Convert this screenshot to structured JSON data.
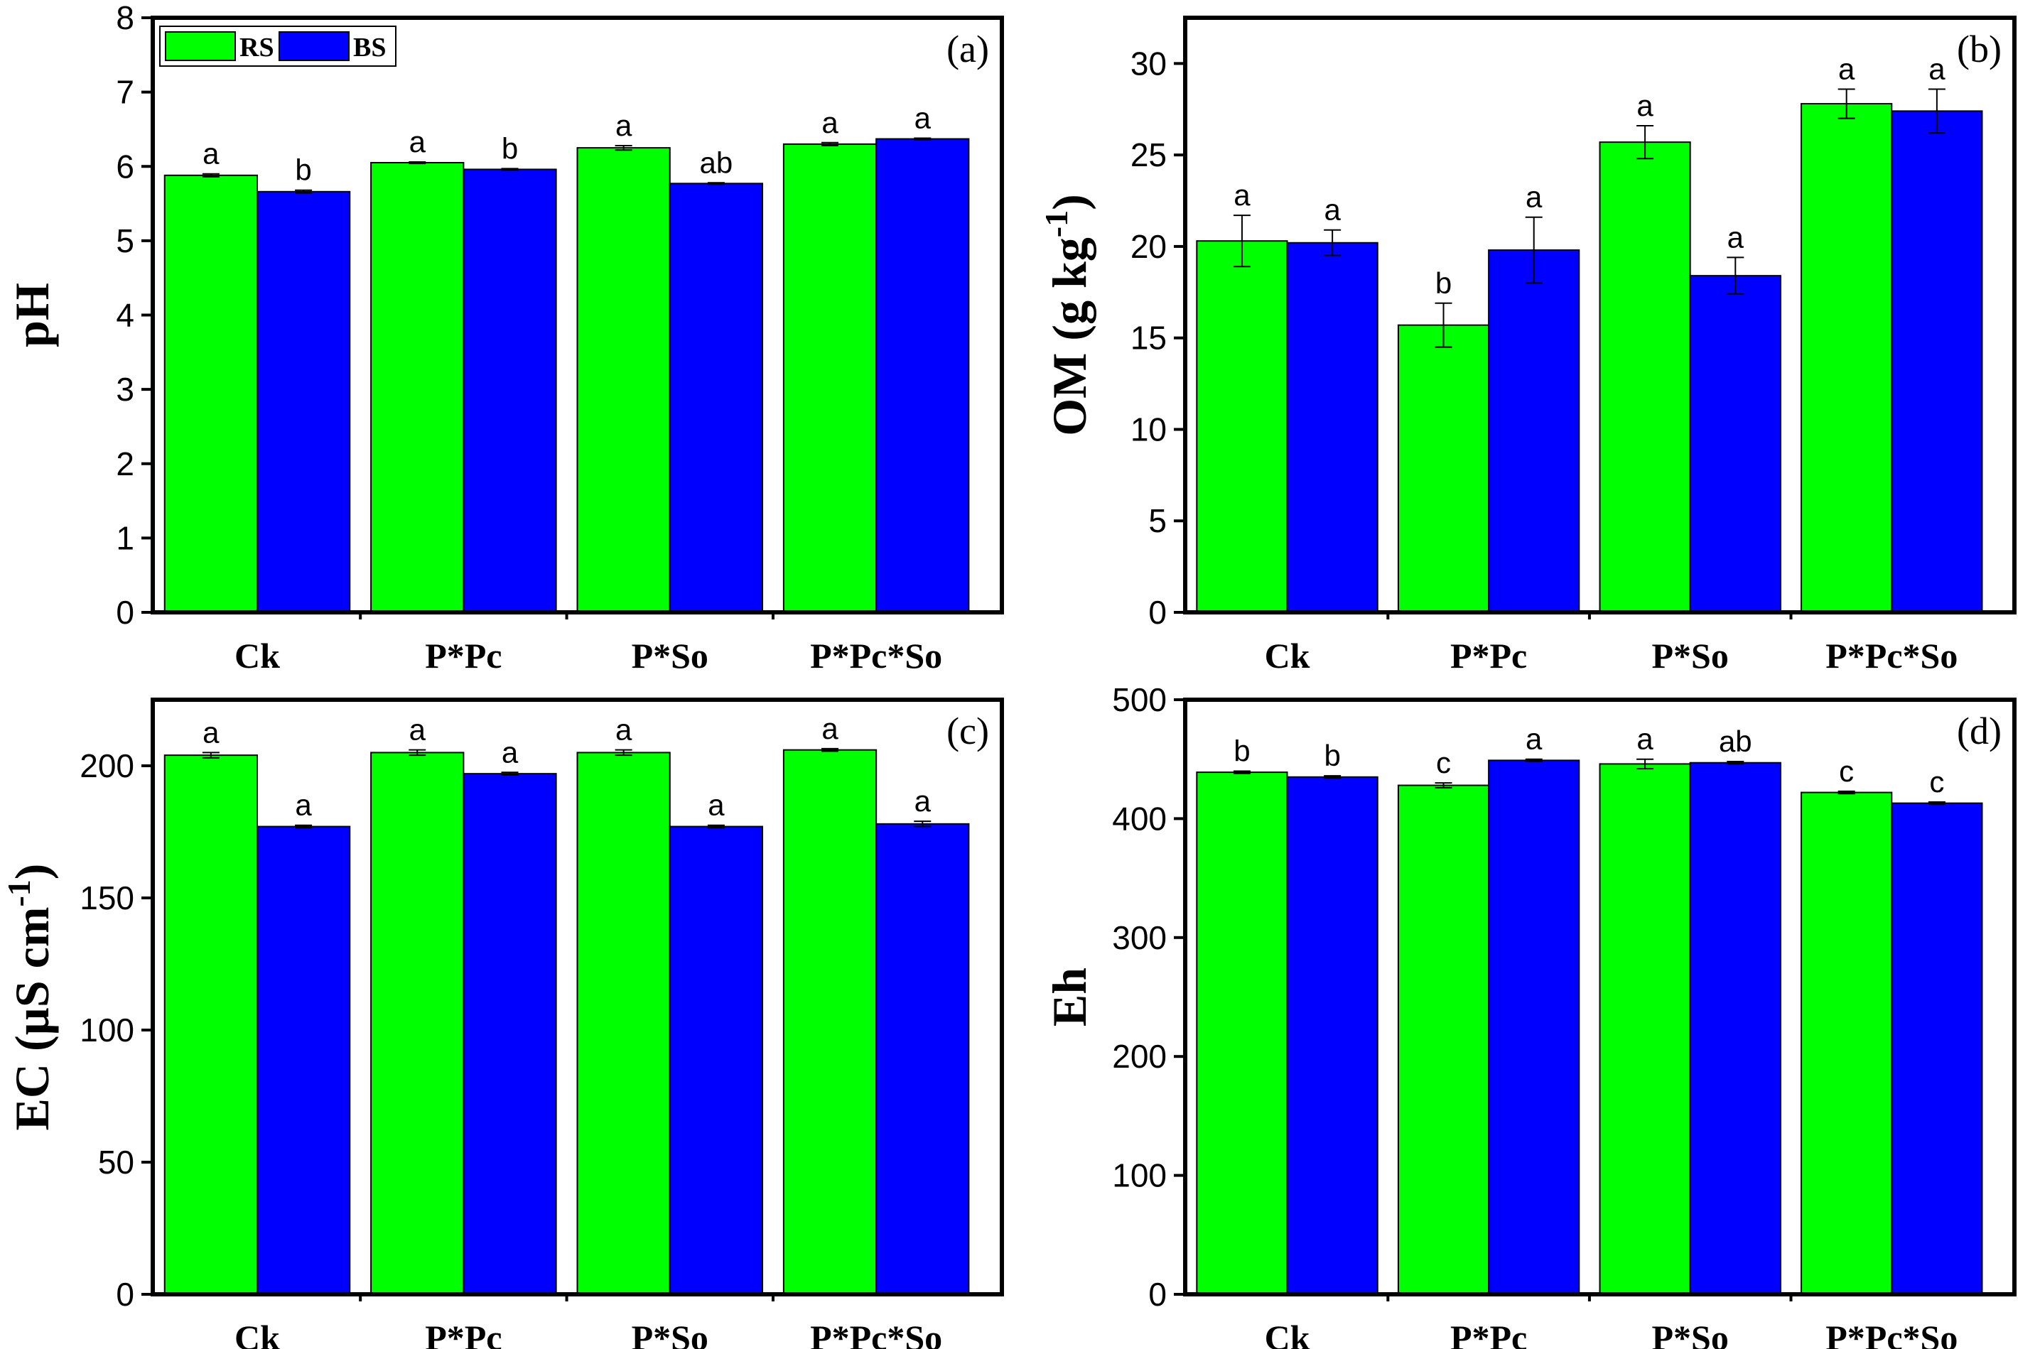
{
  "legend": [
    {
      "name": "RS",
      "color": "#00FF00"
    },
    {
      "name": "BS",
      "color": "#0000FF"
    }
  ],
  "chart_data": [
    {
      "type": "bar",
      "panel": "(a)",
      "ylabel": "pH",
      "ylabel_sup": "",
      "ylim": [
        0,
        8
      ],
      "yticks": [
        0,
        1,
        2,
        3,
        4,
        5,
        6,
        7,
        8
      ],
      "categories": [
        "Ck",
        "P*Pc",
        "P*So",
        "P*Pc*So"
      ],
      "series": [
        {
          "name": "RS",
          "color": "#00FF00",
          "values": [
            5.88,
            6.05,
            6.25,
            6.3
          ],
          "errors": [
            0.02,
            0.01,
            0.03,
            0.02
          ],
          "labels": [
            "a",
            "a",
            "a",
            "a"
          ]
        },
        {
          "name": "BS",
          "color": "#0000FF",
          "values": [
            5.66,
            5.96,
            5.77,
            6.37
          ],
          "errors": [
            0.02,
            0.01,
            0.01,
            0.01
          ],
          "labels": [
            "b",
            "b",
            "ab",
            "a"
          ]
        }
      ],
      "legend": true
    },
    {
      "type": "bar",
      "panel": "(b)",
      "ylabel": "OM (g kg",
      "ylabel_sup": "-1",
      "ylabel_tail": ")",
      "ylim": [
        0,
        32.5
      ],
      "yticks": [
        0,
        5,
        10,
        15,
        20,
        25,
        30
      ],
      "categories": [
        "Ck",
        "P*Pc",
        "P*So",
        "P*Pc*So"
      ],
      "series": [
        {
          "name": "RS",
          "color": "#00FF00",
          "values": [
            20.3,
            15.7,
            25.7,
            27.8
          ],
          "errors": [
            1.4,
            1.2,
            0.9,
            0.8
          ],
          "labels": [
            "a",
            "b",
            "a",
            "a"
          ]
        },
        {
          "name": "BS",
          "color": "#0000FF",
          "values": [
            20.2,
            19.8,
            18.4,
            27.4
          ],
          "errors": [
            0.7,
            1.8,
            1.0,
            1.2
          ],
          "labels": [
            "a",
            "a",
            "a",
            "a"
          ]
        }
      ],
      "legend": false
    },
    {
      "type": "bar",
      "panel": "(c)",
      "ylabel": "EC (µS cm",
      "ylabel_sup": "-1",
      "ylabel_tail": ")",
      "ylim": [
        0,
        225
      ],
      "yticks": [
        0,
        50,
        100,
        150,
        200
      ],
      "categories": [
        "Ck",
        "P*Pc",
        "P*So",
        "P*Pc*So"
      ],
      "series": [
        {
          "name": "RS",
          "color": "#00FF00",
          "values": [
            204,
            205,
            205,
            206
          ],
          "errors": [
            1,
            1,
            1,
            0.5
          ],
          "labels": [
            "a",
            "a",
            "a",
            "a"
          ]
        },
        {
          "name": "BS",
          "color": "#0000FF",
          "values": [
            177,
            197,
            177,
            178
          ],
          "errors": [
            0.5,
            0.5,
            0.5,
            1
          ],
          "labels": [
            "a",
            "a",
            "a",
            "a"
          ]
        }
      ],
      "legend": false
    },
    {
      "type": "bar",
      "panel": "(d)",
      "ylabel": "Eh",
      "ylabel_sup": "",
      "ylim": [
        0,
        500
      ],
      "yticks": [
        0,
        100,
        200,
        300,
        400,
        500
      ],
      "categories": [
        "Ck",
        "P*Pc",
        "P*So",
        "P*Pc*So"
      ],
      "series": [
        {
          "name": "RS",
          "color": "#00FF00",
          "values": [
            439,
            428,
            446,
            422
          ],
          "errors": [
            1,
            2,
            4,
            1
          ],
          "labels": [
            "b",
            "c",
            "a",
            "c"
          ]
        },
        {
          "name": "BS",
          "color": "#0000FF",
          "values": [
            435,
            449,
            447,
            413
          ],
          "errors": [
            1,
            1,
            1,
            1
          ],
          "labels": [
            "b",
            "a",
            "ab",
            "c"
          ]
        }
      ],
      "legend": false
    }
  ]
}
